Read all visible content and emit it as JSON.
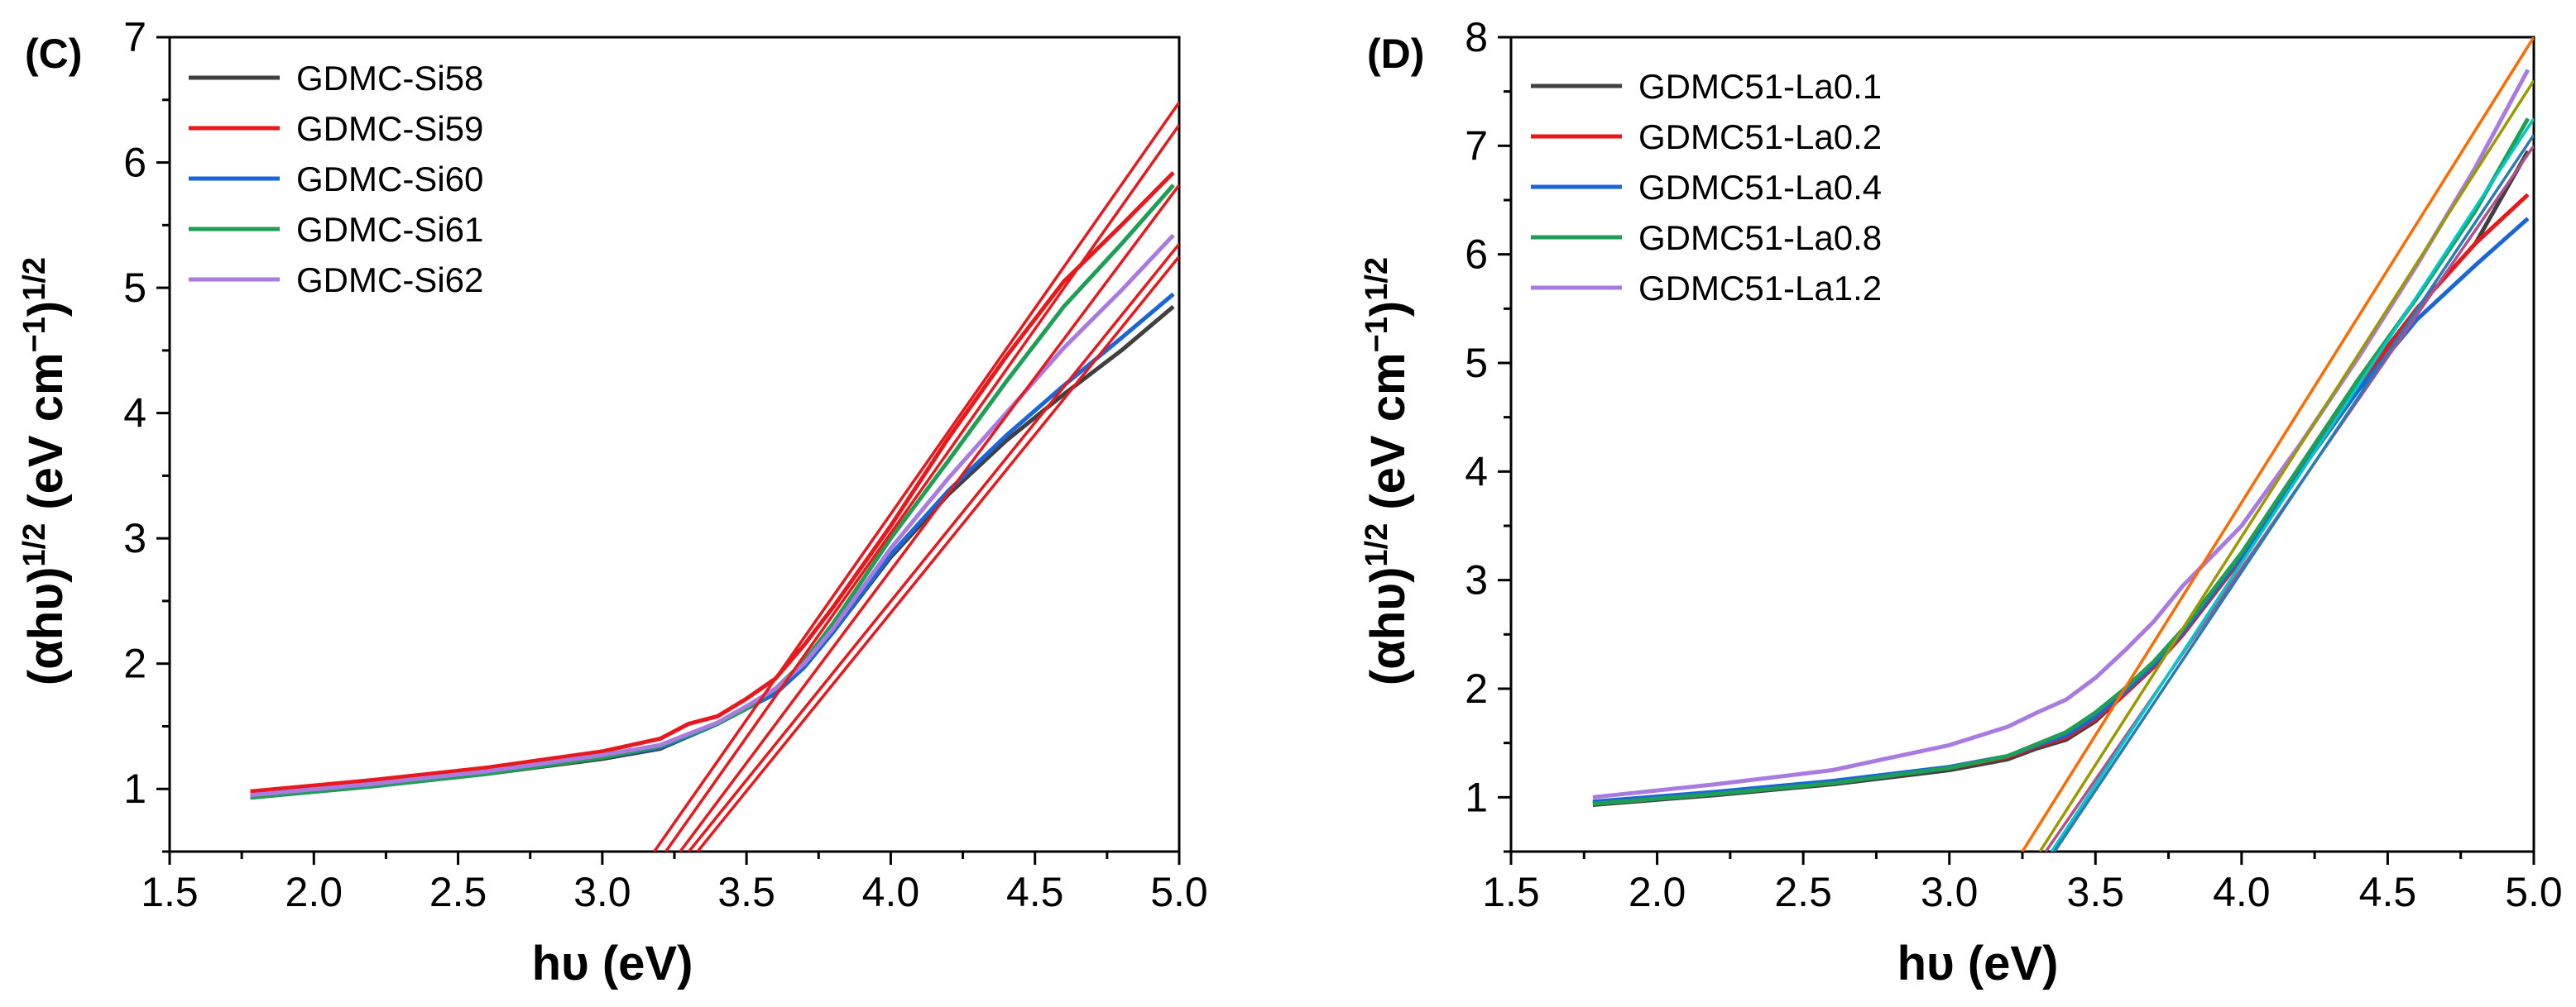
{
  "chart_data": [
    {
      "panel": "(C)",
      "type": "line",
      "xlabel": "hυ (eV)",
      "ylabel_main": "(αhυ)",
      "ylabel_sup1": "1/2",
      "ylabel_units": " (eV cm",
      "ylabel_sup2": "−1",
      "ylabel_close": ")",
      "ylabel_sup3": "1/2",
      "xlim": [
        1.5,
        5.0
      ],
      "ylim": [
        0.5,
        7.0
      ],
      "xticks": [
        1.5,
        2.0,
        2.5,
        3.0,
        3.5,
        4.0,
        4.5,
        5.0
      ],
      "xtick_labels": [
        "1.5",
        "2.0",
        "2.5",
        "3.0",
        "3.5",
        "4.0",
        "4.5",
        "5.0"
      ],
      "yticks": [
        1,
        2,
        3,
        4,
        5,
        6,
        7
      ],
      "ytick_labels": [
        "1",
        "2",
        "3",
        "4",
        "5",
        "6",
        "7"
      ],
      "legend_position": "top-left",
      "series": [
        {
          "name": "GDMC-Si58",
          "color": "#404040",
          "x": [
            1.78,
            2.2,
            2.6,
            3.0,
            3.2,
            3.3,
            3.4,
            3.5,
            3.6,
            3.7,
            3.8,
            4.0,
            4.2,
            4.4,
            4.6,
            4.8,
            4.98
          ],
          "y": [
            0.93,
            1.02,
            1.12,
            1.24,
            1.32,
            1.42,
            1.52,
            1.65,
            1.78,
            1.98,
            2.25,
            2.85,
            3.35,
            3.78,
            4.15,
            4.5,
            4.85
          ]
        },
        {
          "name": "GDMC-Si59",
          "color": "#e8191c",
          "x": [
            1.78,
            2.2,
            2.6,
            3.0,
            3.2,
            3.3,
            3.4,
            3.5,
            3.6,
            3.7,
            3.8,
            4.0,
            4.2,
            4.4,
            4.6,
            4.8,
            4.98
          ],
          "y": [
            0.98,
            1.07,
            1.17,
            1.3,
            1.4,
            1.52,
            1.58,
            1.72,
            1.88,
            2.15,
            2.45,
            3.1,
            3.8,
            4.45,
            5.05,
            5.5,
            5.92
          ]
        },
        {
          "name": "GDMC-Si60",
          "color": "#1a66d9",
          "x": [
            1.78,
            2.2,
            2.6,
            3.0,
            3.2,
            3.3,
            3.4,
            3.5,
            3.6,
            3.7,
            3.8,
            4.0,
            4.2,
            4.4,
            4.6,
            4.8,
            4.98
          ],
          "y": [
            0.94,
            1.03,
            1.13,
            1.25,
            1.33,
            1.42,
            1.52,
            1.64,
            1.76,
            1.97,
            2.25,
            2.87,
            3.38,
            3.82,
            4.22,
            4.6,
            4.95
          ]
        },
        {
          "name": "GDMC-Si61",
          "color": "#1f9e55",
          "x": [
            1.78,
            2.2,
            2.6,
            3.0,
            3.2,
            3.3,
            3.4,
            3.5,
            3.6,
            3.7,
            3.8,
            4.0,
            4.2,
            4.4,
            4.6,
            4.8,
            4.98
          ],
          "y": [
            0.93,
            1.02,
            1.12,
            1.25,
            1.34,
            1.43,
            1.52,
            1.64,
            1.8,
            2.02,
            2.32,
            3.0,
            3.62,
            4.25,
            4.85,
            5.35,
            5.82
          ]
        },
        {
          "name": "GDMC-Si62",
          "color": "#a97be0",
          "x": [
            1.78,
            2.2,
            2.6,
            3.0,
            3.2,
            3.3,
            3.4,
            3.5,
            3.6,
            3.7,
            3.8,
            4.0,
            4.2,
            4.4,
            4.6,
            4.8,
            4.98
          ],
          "y": [
            0.95,
            1.04,
            1.14,
            1.27,
            1.35,
            1.44,
            1.53,
            1.66,
            1.8,
            2.0,
            2.28,
            2.92,
            3.48,
            4.0,
            4.52,
            4.98,
            5.42
          ]
        }
      ],
      "fit_lines": [
        {
          "color": "#e8191c",
          "x": [
            3.18,
            5.0
          ],
          "y": [
            0.5,
            6.48
          ]
        },
        {
          "color": "#e8191c",
          "x": [
            3.22,
            5.0
          ],
          "y": [
            0.5,
            6.3
          ]
        },
        {
          "color": "#e8191c",
          "x": [
            3.27,
            5.0
          ],
          "y": [
            0.5,
            5.82
          ]
        },
        {
          "color": "#e8191c",
          "x": [
            3.3,
            5.0
          ],
          "y": [
            0.5,
            5.35
          ]
        },
        {
          "color": "#e8191c",
          "x": [
            3.33,
            5.0
          ],
          "y": [
            0.5,
            5.25
          ]
        }
      ]
    },
    {
      "panel": "(D)",
      "type": "line",
      "xlabel": "hυ (eV)",
      "ylabel_main": "(αhυ)",
      "ylabel_sup1": "1/2",
      "ylabel_units": " (eV cm",
      "ylabel_sup2": "−1",
      "ylabel_close": ")",
      "ylabel_sup3": "1/2",
      "xlim": [
        1.5,
        5.0
      ],
      "ylim": [
        0.5,
        8.0
      ],
      "xticks": [
        1.5,
        2.0,
        2.5,
        3.0,
        3.5,
        4.0,
        4.5,
        5.0
      ],
      "xtick_labels": [
        "1.5",
        "2.0",
        "2.5",
        "3.0",
        "3.5",
        "4.0",
        "4.5",
        "5.0"
      ],
      "yticks": [
        1,
        2,
        3,
        4,
        5,
        6,
        7,
        8
      ],
      "ytick_labels": [
        "1",
        "2",
        "3",
        "4",
        "5",
        "6",
        "7",
        "8"
      ],
      "legend_position": "top-left",
      "series": [
        {
          "name": "GDMC51-La0.1",
          "color": "#404040",
          "x": [
            1.78,
            2.2,
            2.6,
            3.0,
            3.2,
            3.3,
            3.4,
            3.5,
            3.6,
            3.7,
            3.8,
            4.0,
            4.2,
            4.4,
            4.6,
            4.8,
            4.98
          ],
          "y": [
            0.93,
            1.02,
            1.12,
            1.25,
            1.35,
            1.45,
            1.53,
            1.7,
            1.95,
            2.2,
            2.5,
            3.2,
            4.0,
            4.8,
            5.5,
            6.1,
            6.95
          ]
        },
        {
          "name": "GDMC51-La0.2",
          "color": "#e8191c",
          "x": [
            1.78,
            2.2,
            2.6,
            3.0,
            3.2,
            3.3,
            3.4,
            3.5,
            3.6,
            3.7,
            3.8,
            4.0,
            4.2,
            4.4,
            4.6,
            4.8,
            4.98
          ],
          "y": [
            0.95,
            1.04,
            1.14,
            1.27,
            1.37,
            1.47,
            1.55,
            1.72,
            1.95,
            2.2,
            2.5,
            3.2,
            4.0,
            4.78,
            5.5,
            6.1,
            6.55
          ]
        },
        {
          "name": "GDMC51-La0.4",
          "color": "#1a66d9",
          "x": [
            1.78,
            2.2,
            2.6,
            3.0,
            3.2,
            3.3,
            3.4,
            3.5,
            3.6,
            3.7,
            3.8,
            4.0,
            4.2,
            4.4,
            4.6,
            4.8,
            4.98
          ],
          "y": [
            0.96,
            1.05,
            1.15,
            1.28,
            1.38,
            1.48,
            1.57,
            1.74,
            1.97,
            2.22,
            2.52,
            3.22,
            4.0,
            4.75,
            5.4,
            5.9,
            6.33
          ]
        },
        {
          "name": "GDMC51-La0.8",
          "color": "#1f9e55",
          "x": [
            1.78,
            2.2,
            2.6,
            3.0,
            3.2,
            3.3,
            3.4,
            3.5,
            3.6,
            3.7,
            3.8,
            4.0,
            4.2,
            4.4,
            4.6,
            4.8,
            4.98
          ],
          "y": [
            0.94,
            1.03,
            1.13,
            1.27,
            1.38,
            1.49,
            1.6,
            1.78,
            2.0,
            2.25,
            2.55,
            3.25,
            4.05,
            4.85,
            5.6,
            6.4,
            7.25
          ]
        },
        {
          "name": "GDMC51-La1.2",
          "color": "#a97be0",
          "x": [
            1.78,
            2.2,
            2.6,
            3.0,
            3.2,
            3.3,
            3.4,
            3.5,
            3.6,
            3.7,
            3.8,
            4.0,
            4.2,
            4.4,
            4.6,
            4.8,
            4.98
          ],
          "y": [
            1.0,
            1.12,
            1.25,
            1.48,
            1.65,
            1.78,
            1.9,
            2.1,
            2.35,
            2.62,
            2.95,
            3.5,
            4.25,
            5.05,
            5.9,
            6.8,
            7.7
          ]
        }
      ],
      "fit_lines": [
        {
          "color": "#ff6a00",
          "x": [
            3.25,
            5.0
          ],
          "y": [
            0.5,
            8.0
          ]
        },
        {
          "color": "#9a9a00",
          "x": [
            3.31,
            5.0
          ],
          "y": [
            0.5,
            7.6
          ]
        },
        {
          "color": "#b05090",
          "x": [
            3.33,
            5.0
          ],
          "y": [
            0.5,
            7.0
          ]
        },
        {
          "color": "#00c8c8",
          "x": [
            3.35,
            5.0
          ],
          "y": [
            0.5,
            7.25
          ]
        },
        {
          "color": "#2a7ab5",
          "x": [
            3.36,
            5.0
          ],
          "y": [
            0.5,
            7.1
          ]
        }
      ]
    }
  ]
}
